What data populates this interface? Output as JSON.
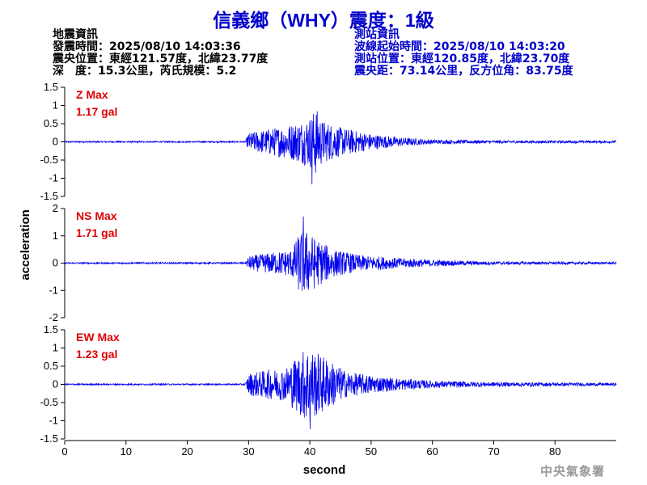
{
  "header": {
    "title": "信義鄉（WHY）震度：1級"
  },
  "quake_info": {
    "heading": "地震資訊",
    "origin_time": "發震時間：2025/08/10 14:03:36",
    "epicenter": "震央位置：東經121.57度，北緯23.77度",
    "depth_magnitude": "深　度：15.3公里，芮氏規模：5.2"
  },
  "station_info": {
    "heading": "測站資訊",
    "wave_start": "波線起始時間：2025/08/10 14:03:20",
    "location": "測站位置：東經120.85度，北緯23.70度",
    "distance": "震央距：73.14公里，反方位角：83.75度"
  },
  "footer": {
    "agency": "中央氣象署"
  },
  "chart_data": {
    "type": "line",
    "color": "#0000ee",
    "xlabel": "second",
    "ylabel": "acceleration",
    "xlim": [
      0,
      90
    ],
    "x_ticks": [
      "0",
      "10",
      "20",
      "30",
      "40",
      "50",
      "60",
      "70",
      "80"
    ],
    "panels": [
      {
        "component": "Z",
        "max_label": "Z Max",
        "max_value": "1.17 gal",
        "ylim": [
          -1.5,
          1.5
        ],
        "y_ticks": [
          "1.5",
          "1",
          "0.5",
          "0",
          "-0.5",
          "-1",
          "-1.5"
        ],
        "envelope": [
          [
            0,
            0.02
          ],
          [
            29.5,
            0.02
          ],
          [
            30,
            0.25
          ],
          [
            33,
            0.35
          ],
          [
            36,
            0.45
          ],
          [
            38,
            0.55
          ],
          [
            40,
            0.7
          ],
          [
            41,
            0.95
          ],
          [
            42,
            0.6
          ],
          [
            45,
            0.4
          ],
          [
            50,
            0.22
          ],
          [
            55,
            0.12
          ],
          [
            60,
            0.06
          ],
          [
            70,
            0.04
          ],
          [
            90,
            0.03
          ]
        ],
        "peak": {
          "t": 40.3,
          "value": -1.17
        }
      },
      {
        "component": "NS",
        "max_label": "NS Max",
        "max_value": "1.71 gal",
        "ylim": [
          -2,
          2
        ],
        "y_ticks": [
          "2",
          "1",
          "0",
          "-1",
          "-2"
        ],
        "envelope": [
          [
            0,
            0.03
          ],
          [
            29.5,
            0.03
          ],
          [
            30,
            0.25
          ],
          [
            34,
            0.4
          ],
          [
            37,
            0.5
          ],
          [
            38.5,
            1.2
          ],
          [
            39.5,
            1.2
          ],
          [
            41,
            0.9
          ],
          [
            44,
            0.5
          ],
          [
            48,
            0.3
          ],
          [
            55,
            0.18
          ],
          [
            62,
            0.1
          ],
          [
            70,
            0.06
          ],
          [
            90,
            0.04
          ]
        ],
        "peak": {
          "t": 38.9,
          "value": 1.71
        }
      },
      {
        "component": "EW",
        "max_label": "EW Max",
        "max_value": "1.23 gal",
        "ylim": [
          -1.5,
          1.5
        ],
        "y_ticks": [
          "1.5",
          "1",
          "0.5",
          "0",
          "-0.5",
          "-1",
          "-1.5"
        ],
        "envelope": [
          [
            0,
            0.02
          ],
          [
            29.5,
            0.02
          ],
          [
            30,
            0.3
          ],
          [
            33,
            0.4
          ],
          [
            36,
            0.45
          ],
          [
            38,
            0.8
          ],
          [
            39.5,
            1.05
          ],
          [
            41,
            0.9
          ],
          [
            43,
            0.7
          ],
          [
            46,
            0.35
          ],
          [
            52,
            0.2
          ],
          [
            60,
            0.1
          ],
          [
            70,
            0.06
          ],
          [
            90,
            0.04
          ]
        ],
        "peak": {
          "t": 40.0,
          "value": -1.23
        }
      }
    ]
  }
}
